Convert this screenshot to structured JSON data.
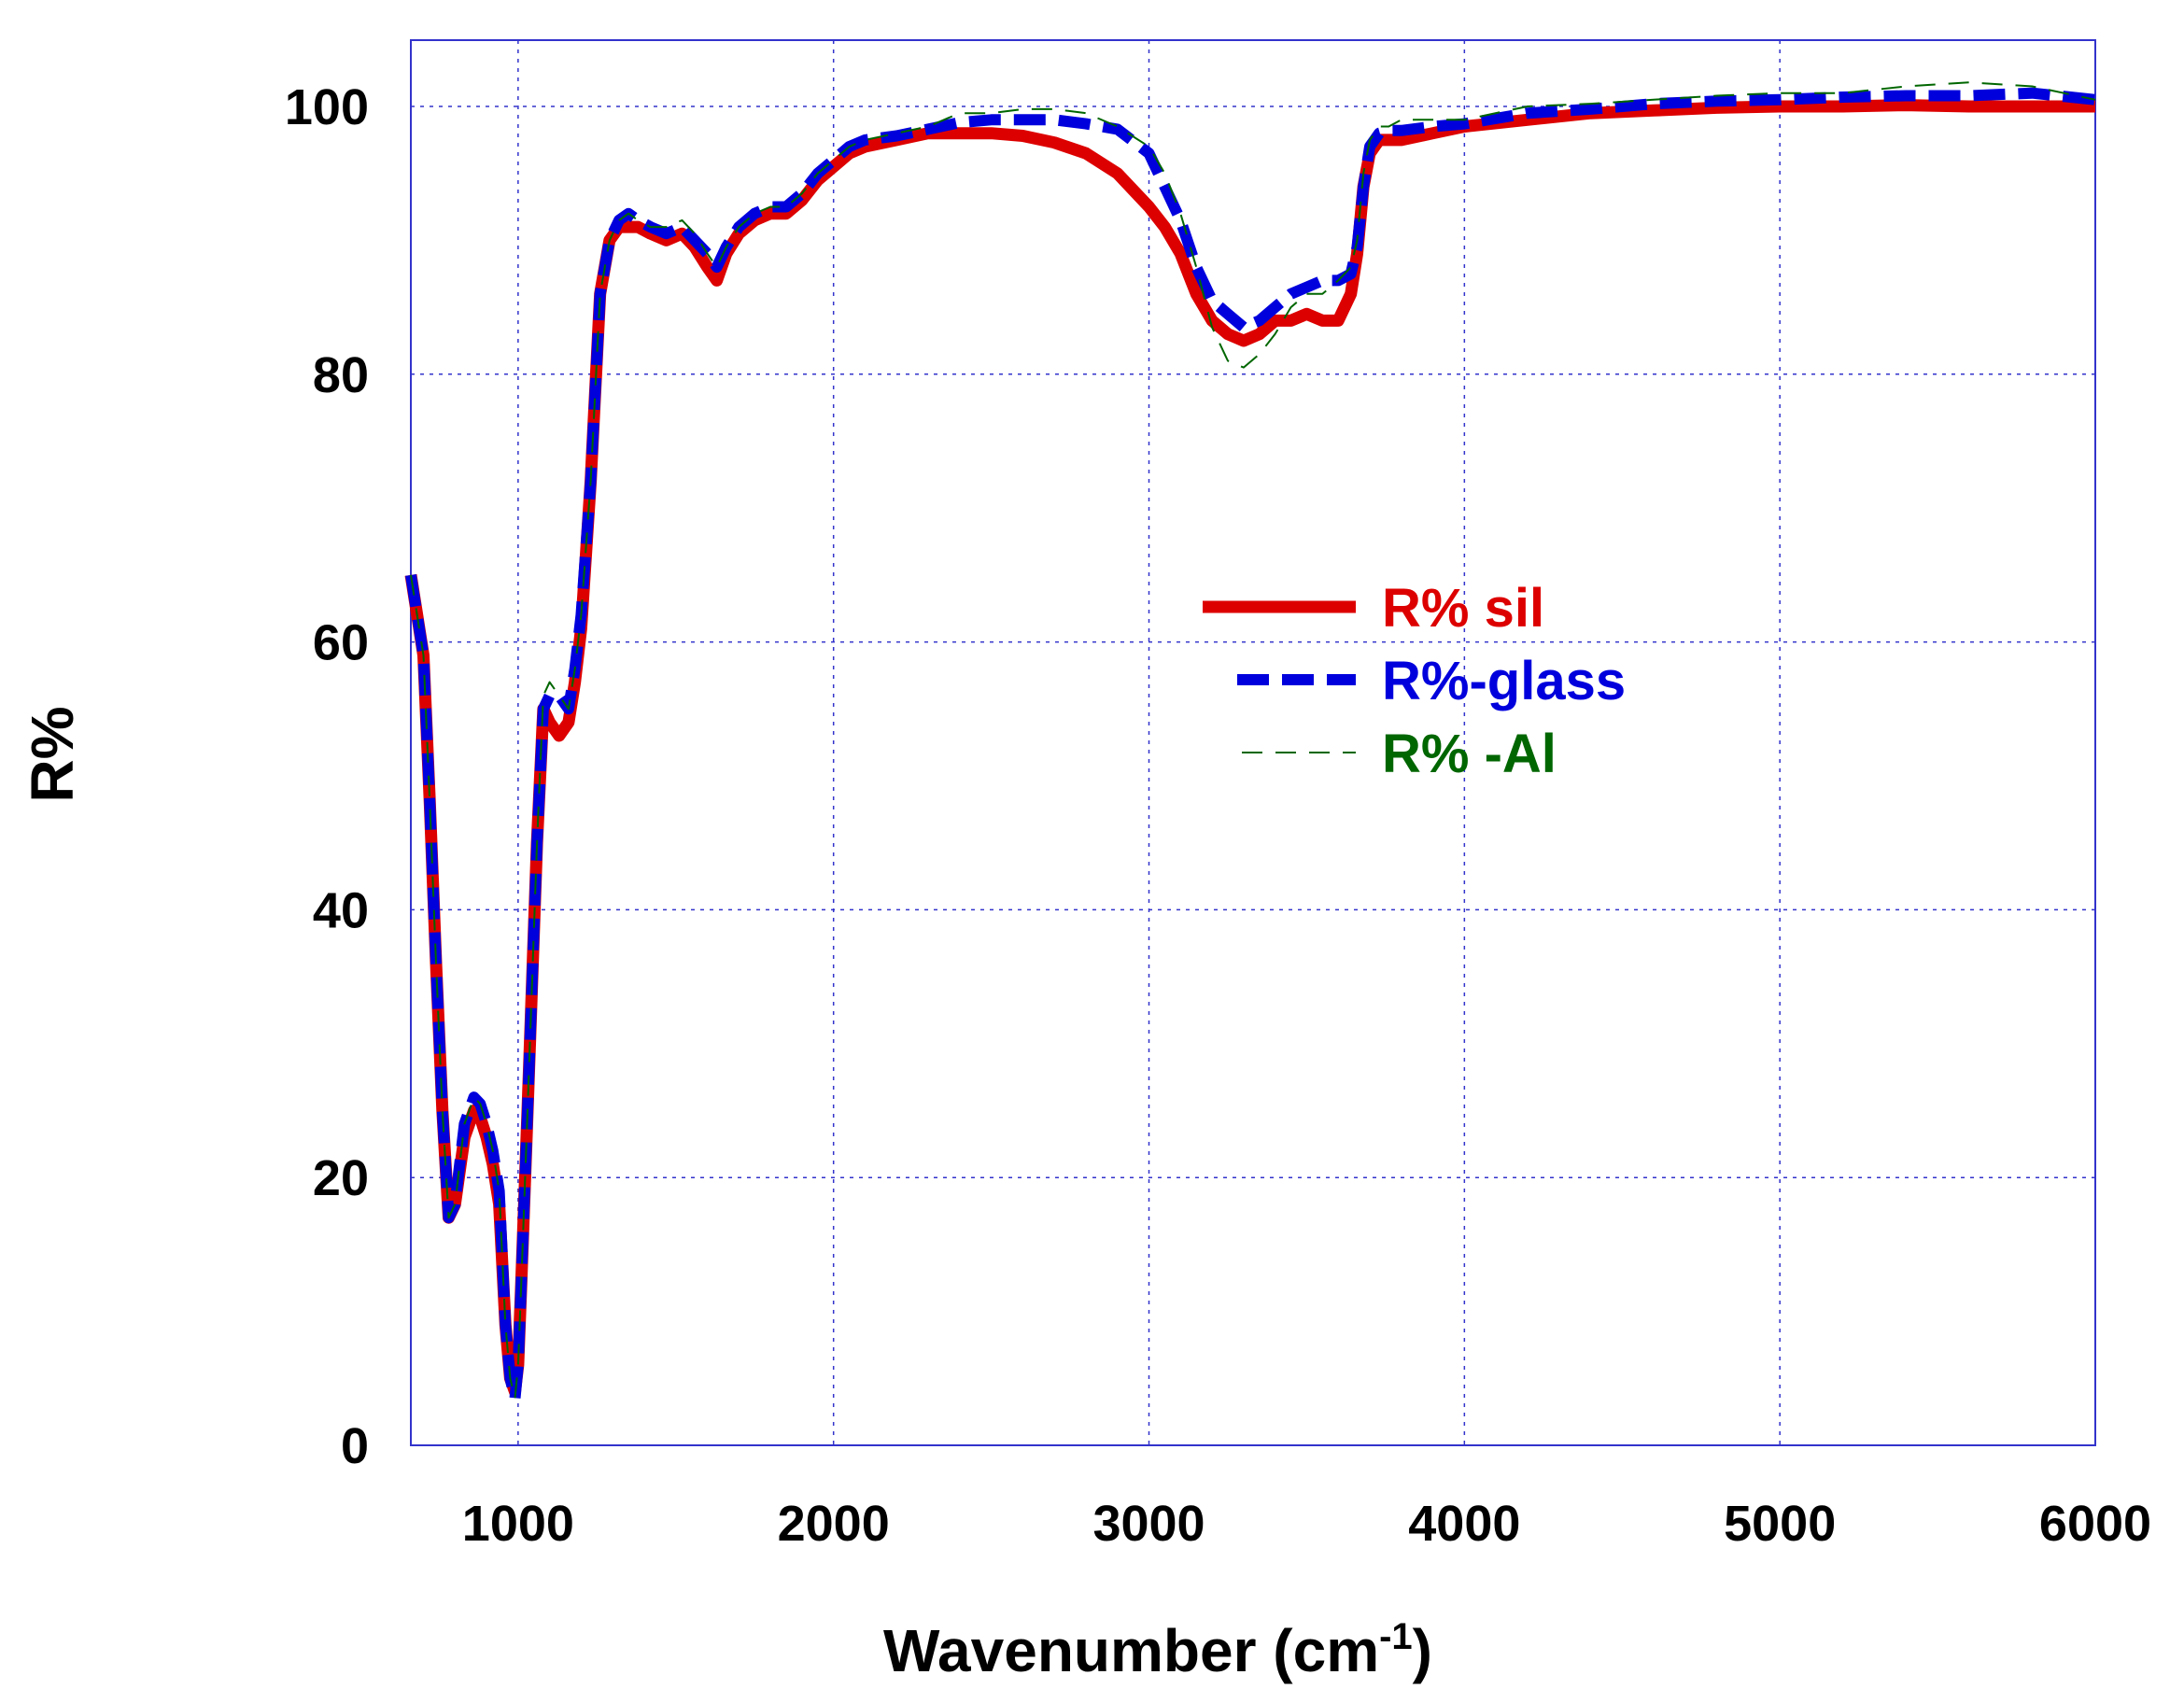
{
  "chart_data": {
    "type": "line",
    "xlabel": "Wavenumber (cm",
    "xlabel_superscript": "-1",
    "xlabel_suffix": ")",
    "ylabel": "R%",
    "xlim": [
      660,
      6000
    ],
    "ylim": [
      0,
      105
    ],
    "x_ticks": [
      1000,
      2000,
      3000,
      4000,
      5000,
      6000
    ],
    "y_ticks": [
      0,
      20,
      40,
      60,
      80,
      100
    ],
    "grid": true,
    "legend_position": "center-right",
    "series": [
      {
        "name": "R% sil",
        "color": "#dd0000",
        "style": "solid",
        "x": [
          660,
          700,
          720,
          740,
          760,
          780,
          800,
          830,
          860,
          880,
          900,
          920,
          940,
          960,
          975,
          990,
          1000,
          1010,
          1030,
          1060,
          1080,
          1100,
          1130,
          1160,
          1180,
          1200,
          1230,
          1260,
          1290,
          1320,
          1350,
          1380,
          1420,
          1470,
          1520,
          1560,
          1600,
          1630,
          1660,
          1700,
          1750,
          1800,
          1850,
          1900,
          1950,
          2000,
          2050,
          2100,
          2200,
          2300,
          2400,
          2500,
          2600,
          2700,
          2800,
          2900,
          3000,
          3050,
          3100,
          3150,
          3200,
          3250,
          3300,
          3350,
          3400,
          3450,
          3500,
          3550,
          3600,
          3640,
          3660,
          3680,
          3700,
          3730,
          3760,
          3800,
          3900,
          4000,
          4200,
          4400,
          4600,
          4800,
          5000,
          5200,
          5400,
          5600,
          5800,
          6000
        ],
        "y": [
          65,
          59,
          48,
          36,
          25,
          17,
          18,
          23,
          25,
          24.5,
          23,
          21,
          18,
          9,
          5,
          4,
          6,
          12,
          25,
          45,
          55,
          54,
          53,
          54,
          57,
          61,
          72,
          86,
          90,
          91,
          91,
          91,
          90.5,
          90,
          90.5,
          89.5,
          88,
          87,
          89,
          90.5,
          91.5,
          92,
          92,
          93,
          94.5,
          95.5,
          96.5,
          97,
          97.5,
          98,
          98,
          98,
          97.8,
          97.3,
          96.5,
          95,
          92.5,
          91,
          89,
          86,
          84,
          83,
          82.5,
          83,
          84,
          84,
          84.5,
          84,
          84,
          86,
          89,
          94,
          96.5,
          97.5,
          97.5,
          97.5,
          98,
          98.5,
          99,
          99.5,
          99.7,
          99.9,
          100,
          100,
          100.1,
          100,
          100,
          100
        ]
      },
      {
        "name": "R%-glass",
        "color": "#0000dd",
        "style": "dashed",
        "x": [
          660,
          700,
          720,
          740,
          760,
          780,
          800,
          830,
          860,
          880,
          900,
          920,
          940,
          960,
          975,
          990,
          1000,
          1010,
          1030,
          1060,
          1080,
          1100,
          1130,
          1160,
          1180,
          1200,
          1230,
          1260,
          1290,
          1320,
          1350,
          1380,
          1420,
          1470,
          1520,
          1560,
          1600,
          1630,
          1660,
          1700,
          1750,
          1800,
          1850,
          1900,
          1950,
          2000,
          2050,
          2100,
          2200,
          2300,
          2400,
          2500,
          2600,
          2700,
          2800,
          2900,
          3000,
          3050,
          3100,
          3150,
          3200,
          3250,
          3300,
          3350,
          3400,
          3450,
          3500,
          3550,
          3600,
          3640,
          3660,
          3680,
          3700,
          3730,
          3760,
          3800,
          3900,
          4000,
          4200,
          4400,
          4600,
          4800,
          5000,
          5200,
          5400,
          5600,
          5800,
          6000
        ],
        "y": [
          65,
          59,
          48,
          36,
          25,
          17,
          18,
          24,
          26,
          25.5,
          24,
          22,
          19,
          9,
          5,
          3.5,
          6,
          12,
          25,
          45,
          55,
          56,
          56,
          55,
          58,
          62,
          72,
          86,
          90,
          91.5,
          92,
          91.5,
          91,
          90.5,
          91,
          90,
          89,
          88,
          89.5,
          91,
          92,
          92.5,
          92.5,
          93.5,
          95,
          96,
          97,
          97.5,
          97.8,
          98.3,
          98.8,
          99,
          99,
          99,
          98.7,
          98.3,
          96.5,
          94,
          91.5,
          88,
          85.5,
          84.5,
          83.5,
          84,
          85,
          86,
          86.5,
          87,
          87,
          87.5,
          89.5,
          94,
          97,
          98,
          98.2,
          98.2,
          98.5,
          98.7,
          99.5,
          99.8,
          100.2,
          100.4,
          100.5,
          100.7,
          100.8,
          100.8,
          101,
          100.5
        ]
      },
      {
        "name": "R% -Al",
        "color": "#006600",
        "style": "thin-dashed",
        "x": [
          660,
          700,
          720,
          740,
          760,
          780,
          800,
          830,
          860,
          880,
          900,
          920,
          940,
          960,
          975,
          990,
          1000,
          1010,
          1030,
          1060,
          1080,
          1100,
          1130,
          1160,
          1180,
          1200,
          1230,
          1260,
          1290,
          1320,
          1350,
          1380,
          1420,
          1470,
          1520,
          1560,
          1600,
          1630,
          1660,
          1700,
          1750,
          1800,
          1850,
          1900,
          1950,
          2000,
          2050,
          2100,
          2200,
          2300,
          2400,
          2500,
          2600,
          2700,
          2800,
          2900,
          3000,
          3050,
          3100,
          3150,
          3200,
          3250,
          3300,
          3350,
          3400,
          3450,
          3500,
          3550,
          3600,
          3640,
          3660,
          3680,
          3700,
          3730,
          3760,
          3800,
          3900,
          4000,
          4200,
          4400,
          4600,
          4800,
          5000,
          5200,
          5400,
          5600,
          5800,
          6000
        ],
        "y": [
          65,
          59,
          48,
          36,
          25,
          17,
          18,
          24,
          26,
          25.5,
          24,
          22,
          19,
          9,
          5,
          3.5,
          6,
          12,
          25,
          45,
          56,
          57,
          56,
          55,
          58,
          62,
          72,
          86,
          90,
          91.5,
          92,
          91.5,
          91,
          91,
          91.5,
          90.5,
          89,
          88,
          89.5,
          91,
          92,
          92.5,
          92.5,
          93.5,
          95,
          96,
          97,
          97.5,
          98,
          98.5,
          99.5,
          99.5,
          99.8,
          99.8,
          99.5,
          98.5,
          97,
          95,
          92,
          88,
          83.5,
          81,
          80.5,
          81.5,
          83,
          85,
          86,
          86,
          87,
          88,
          90,
          95,
          97.5,
          98.5,
          98.5,
          99,
          99,
          99,
          100,
          100.2,
          100.5,
          100.8,
          101,
          101,
          101.5,
          101.8,
          101.5,
          100.5
        ]
      }
    ]
  }
}
